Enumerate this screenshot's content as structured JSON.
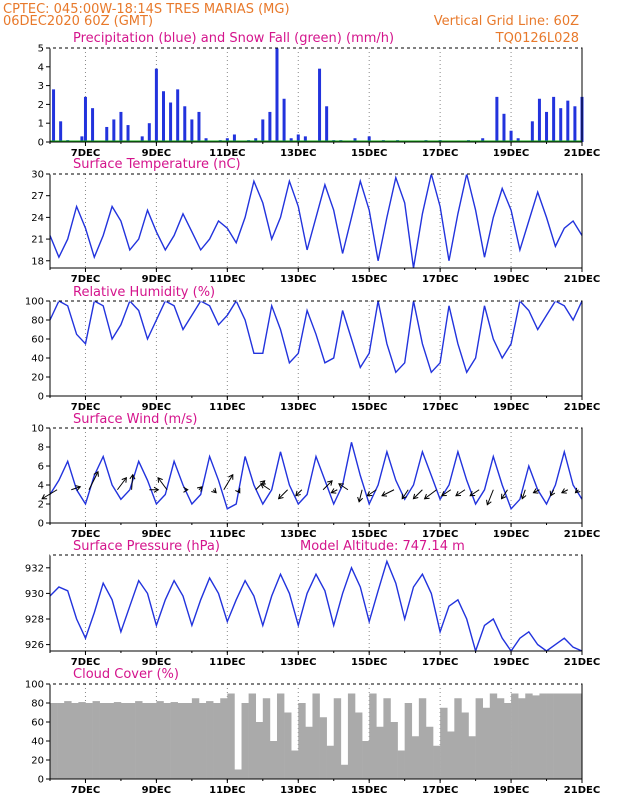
{
  "header": {
    "line1": "CPTEC:  045:00W-18:14S  TRES MARIAS (MG)",
    "line2": "06DEC2020 60Z (GMT)",
    "right1": "Vertical Grid Line: 60Z",
    "right2": "TQ0126L028"
  },
  "x_axis": {
    "start_day": 6.0,
    "end_day": 21.0,
    "labels": [
      "7DEC",
      "9DEC",
      "11DEC",
      "13DEC",
      "15DEC",
      "17DEC",
      "19DEC",
      "21DEC"
    ],
    "label_days": [
      7,
      9,
      11,
      13,
      15,
      17,
      19,
      21
    ]
  },
  "colors": {
    "line": "#2233dd",
    "precip": "#2233dd",
    "snow": "#11aa11",
    "cloud": "#aaaaaa",
    "header": "#e8792b",
    "title": "#d4148c"
  },
  "chart_data": [
    {
      "type": "bar",
      "title": "Precipitation (blue) and Snow Fall (green) (mm/h)",
      "ylim": [
        0,
        5
      ],
      "yticks": [
        0,
        1,
        2,
        3,
        4,
        5
      ],
      "series": [
        {
          "name": "Precipitation",
          "x": [
            6.1,
            6.3,
            6.5,
            6.9,
            7.0,
            7.2,
            7.6,
            7.8,
            8.0,
            8.2,
            8.6,
            8.8,
            9.0,
            9.2,
            9.4,
            9.6,
            9.8,
            10.0,
            10.2,
            10.4,
            10.8,
            11.0,
            11.2,
            11.6,
            11.8,
            12.0,
            12.2,
            12.4,
            12.6,
            12.8,
            13.0,
            13.2,
            13.6,
            13.8,
            14.0,
            14.2,
            14.6,
            15.0,
            15.4,
            15.8,
            16.2,
            16.6,
            17.0,
            17.4,
            17.8,
            18.2,
            18.6,
            18.8,
            19.0,
            19.2,
            19.6,
            19.8,
            20.0,
            20.2,
            20.4,
            20.6,
            20.8,
            21.0
          ],
          "values": [
            2.8,
            1.1,
            0.1,
            0.3,
            2.4,
            1.8,
            0.8,
            1.2,
            1.6,
            0.9,
            0.3,
            1.0,
            3.9,
            2.7,
            2.1,
            2.8,
            1.9,
            1.2,
            1.6,
            0.2,
            0.1,
            0.2,
            0.4,
            0.1,
            0.2,
            1.2,
            1.6,
            5.0,
            2.3,
            0.2,
            0.4,
            0.3,
            3.9,
            1.9,
            0.1,
            0.1,
            0.2,
            0.3,
            0.1,
            0.1,
            0.0,
            0.1,
            0.1,
            0.0,
            0.1,
            0.2,
            2.4,
            1.5,
            0.6,
            0.2,
            1.1,
            2.3,
            1.6,
            2.4,
            1.8,
            2.2,
            1.9,
            2.4
          ]
        },
        {
          "name": "Snow Fall",
          "x": [
            6.0,
            21.0
          ],
          "values": [
            0,
            0
          ]
        }
      ]
    },
    {
      "type": "line",
      "title": "Surface Temperature (nC)",
      "ylim": [
        17,
        30
      ],
      "yticks": [
        18,
        21,
        24,
        27,
        30
      ],
      "x": [
        6.0,
        6.25,
        6.5,
        6.75,
        7.0,
        7.25,
        7.5,
        7.75,
        8.0,
        8.25,
        8.5,
        8.75,
        9.0,
        9.25,
        9.5,
        9.75,
        10.0,
        10.25,
        10.5,
        10.75,
        11.0,
        11.25,
        11.5,
        11.75,
        12.0,
        12.25,
        12.5,
        12.75,
        13.0,
        13.25,
        13.5,
        13.75,
        14.0,
        14.25,
        14.5,
        14.75,
        15.0,
        15.25,
        15.5,
        15.75,
        16.0,
        16.25,
        16.5,
        16.75,
        17.0,
        17.25,
        17.5,
        17.75,
        18.0,
        18.25,
        18.5,
        18.75,
        19.0,
        19.25,
        19.5,
        19.75,
        20.0,
        20.25,
        20.5,
        20.75,
        21.0
      ],
      "values": [
        21.5,
        18.5,
        21.0,
        25.5,
        22.5,
        18.5,
        21.5,
        25.5,
        23.5,
        19.5,
        21.0,
        25.0,
        22.0,
        19.5,
        21.5,
        24.5,
        22.0,
        19.5,
        21.0,
        23.5,
        22.5,
        20.5,
        24.0,
        29.0,
        26.0,
        21.0,
        24.0,
        29.0,
        25.5,
        19.5,
        24.0,
        28.5,
        25.0,
        19.0,
        24.0,
        29.0,
        25.0,
        18.0,
        24.0,
        29.5,
        26.0,
        17.0,
        24.5,
        30.0,
        25.5,
        18.0,
        24.5,
        30.0,
        25.0,
        18.5,
        24.0,
        28.0,
        25.0,
        19.5,
        23.5,
        27.5,
        24.0,
        20.0,
        22.5,
        23.5,
        21.5
      ]
    },
    {
      "type": "line",
      "title": "Relative Humidity (%)",
      "ylim": [
        0,
        100
      ],
      "yticks": [
        0,
        20,
        40,
        60,
        80,
        100
      ],
      "x": [
        6.0,
        6.25,
        6.5,
        6.75,
        7.0,
        7.25,
        7.5,
        7.75,
        8.0,
        8.25,
        8.5,
        8.75,
        9.0,
        9.25,
        9.5,
        9.75,
        10.0,
        10.25,
        10.5,
        10.75,
        11.0,
        11.25,
        11.5,
        11.75,
        12.0,
        12.25,
        12.5,
        12.75,
        13.0,
        13.25,
        13.5,
        13.75,
        14.0,
        14.25,
        14.5,
        14.75,
        15.0,
        15.25,
        15.5,
        15.75,
        16.0,
        16.25,
        16.5,
        16.75,
        17.0,
        17.25,
        17.5,
        17.75,
        18.0,
        18.25,
        18.5,
        18.75,
        19.0,
        19.25,
        19.5,
        19.75,
        20.0,
        20.25,
        20.5,
        20.75,
        21.0
      ],
      "values": [
        80,
        100,
        95,
        65,
        55,
        100,
        95,
        60,
        75,
        100,
        90,
        60,
        80,
        100,
        95,
        70,
        85,
        100,
        95,
        75,
        85,
        100,
        80,
        45,
        45,
        95,
        70,
        35,
        45,
        90,
        65,
        35,
        40,
        90,
        60,
        30,
        45,
        100,
        55,
        25,
        35,
        100,
        55,
        25,
        35,
        95,
        55,
        25,
        40,
        95,
        60,
        40,
        55,
        100,
        90,
        70,
        85,
        100,
        95,
        80,
        100
      ]
    },
    {
      "type": "line",
      "title": "Surface Wind (m/s)",
      "ylim": [
        0,
        10
      ],
      "yticks": [
        0,
        2,
        4,
        6,
        8,
        10
      ],
      "x": [
        6.0,
        6.25,
        6.5,
        6.75,
        7.0,
        7.25,
        7.5,
        7.75,
        8.0,
        8.25,
        8.5,
        8.75,
        9.0,
        9.25,
        9.5,
        9.75,
        10.0,
        10.25,
        10.5,
        10.75,
        11.0,
        11.25,
        11.5,
        11.75,
        12.0,
        12.25,
        12.5,
        12.75,
        13.0,
        13.25,
        13.5,
        13.75,
        14.0,
        14.25,
        14.5,
        14.75,
        15.0,
        15.25,
        15.5,
        15.75,
        16.0,
        16.25,
        16.5,
        16.75,
        17.0,
        17.25,
        17.5,
        17.75,
        18.0,
        18.25,
        18.5,
        18.75,
        19.0,
        19.25,
        19.5,
        19.75,
        20.0,
        20.25,
        20.5,
        20.75,
        21.0
      ],
      "values": [
        3.0,
        4.5,
        6.5,
        3.5,
        2.0,
        5.0,
        7.0,
        4.0,
        2.5,
        3.5,
        6.5,
        4.5,
        2.0,
        3.0,
        6.5,
        4.0,
        2.0,
        3.0,
        7.0,
        4.5,
        1.5,
        2.0,
        7.0,
        4.0,
        2.0,
        3.5,
        7.5,
        4.0,
        2.0,
        3.0,
        7.0,
        4.5,
        2.0,
        4.0,
        8.5,
        5.0,
        2.0,
        4.0,
        7.5,
        4.5,
        2.5,
        4.0,
        7.5,
        5.0,
        2.5,
        4.0,
        7.5,
        4.5,
        2.0,
        3.5,
        7.0,
        4.0,
        1.5,
        2.5,
        6.0,
        3.5,
        2.0,
        4.0,
        7.5,
        4.0,
        2.5
      ],
      "arrows": {
        "x": [
          6.2,
          6.6,
          7.1,
          7.9,
          8.3,
          8.8,
          9.3,
          9.8,
          10.2,
          10.6,
          10.9,
          11.3,
          11.8,
          12.2,
          12.7,
          13.1,
          13.7,
          14.1,
          14.4,
          14.8,
          15.2,
          15.7,
          16.1,
          16.5,
          16.9,
          17.3,
          17.7,
          18.1,
          18.5,
          18.9,
          19.4,
          19.8,
          20.2,
          20.6,
          20.9
        ],
        "u": [
          -2.5,
          1.5,
          1.5,
          1.5,
          0.2,
          1.5,
          -1.5,
          0.5,
          0.5,
          0.5,
          1.5,
          0.3,
          1.5,
          -1.5,
          -1.5,
          -1.0,
          1.5,
          -1.0,
          -1.5,
          -0.5,
          -1.5,
          -2.0,
          -1.0,
          -1.5,
          -2.0,
          -1.5,
          -1.5,
          -1.5,
          -1.0,
          -1.0,
          -0.5,
          -1.0,
          -0.5,
          -1.0,
          -0.5
        ],
        "v": [
          -1.5,
          0.5,
          3.0,
          2.0,
          2.5,
          0.0,
          2.0,
          0.0,
          0.5,
          -0.5,
          2.5,
          -0.5,
          1.5,
          1.0,
          -1.5,
          -1.0,
          1.5,
          -0.5,
          1.0,
          -2.0,
          -1.0,
          -1.0,
          -1.5,
          -1.5,
          -1.5,
          -1.0,
          -1.0,
          -1.0,
          -2.5,
          -1.5,
          -1.5,
          -0.5,
          -1.0,
          -0.5,
          -0.5
        ]
      }
    },
    {
      "type": "line",
      "title": "Surface Pressure (hPa)",
      "annotation": "Model Altitude: 747.14  m",
      "ylim": [
        925.5,
        933.0
      ],
      "yticks": [
        926,
        928,
        930,
        932
      ],
      "x": [
        6.0,
        6.25,
        6.5,
        6.75,
        7.0,
        7.25,
        7.5,
        7.75,
        8.0,
        8.25,
        8.5,
        8.75,
        9.0,
        9.25,
        9.5,
        9.75,
        10.0,
        10.25,
        10.5,
        10.75,
        11.0,
        11.25,
        11.5,
        11.75,
        12.0,
        12.25,
        12.5,
        12.75,
        13.0,
        13.25,
        13.5,
        13.75,
        14.0,
        14.25,
        14.5,
        14.75,
        15.0,
        15.25,
        15.5,
        15.75,
        16.0,
        16.25,
        16.5,
        16.75,
        17.0,
        17.25,
        17.5,
        17.75,
        18.0,
        18.25,
        18.5,
        18.75,
        19.0,
        19.25,
        19.5,
        19.75,
        20.0,
        20.25,
        20.5,
        20.75,
        21.0
      ],
      "values": [
        929.8,
        930.5,
        930.2,
        928.0,
        926.5,
        928.5,
        930.8,
        929.5,
        927.0,
        929.0,
        931.0,
        930.0,
        927.5,
        929.5,
        931.0,
        929.8,
        927.5,
        929.5,
        931.2,
        930.0,
        927.8,
        929.5,
        931.0,
        929.8,
        927.5,
        929.8,
        931.5,
        930.0,
        927.5,
        930.0,
        931.5,
        930.2,
        927.5,
        930.0,
        932.0,
        930.5,
        927.8,
        930.2,
        932.5,
        930.8,
        928.0,
        930.5,
        931.5,
        930.0,
        927.0,
        929.0,
        929.5,
        928.0,
        925.5,
        927.5,
        928.0,
        926.5,
        925.5,
        926.5,
        927.0,
        926.0,
        925.5,
        926.0,
        926.5,
        925.8,
        925.5
      ]
    },
    {
      "type": "bar",
      "title": "Cloud Cover (%)",
      "ylim": [
        0,
        100
      ],
      "yticks": [
        0,
        20,
        40,
        60,
        80,
        100
      ],
      "x": [
        6.0,
        6.2,
        6.4,
        6.6,
        6.8,
        7.0,
        7.2,
        7.4,
        7.6,
        7.8,
        8.0,
        8.2,
        8.4,
        8.6,
        8.8,
        9.0,
        9.2,
        9.4,
        9.6,
        9.8,
        10.0,
        10.2,
        10.4,
        10.6,
        10.8,
        11.0,
        11.2,
        11.4,
        11.6,
        11.8,
        12.0,
        12.2,
        12.4,
        12.6,
        12.8,
        13.0,
        13.2,
        13.4,
        13.6,
        13.8,
        14.0,
        14.2,
        14.4,
        14.6,
        14.8,
        15.0,
        15.2,
        15.4,
        15.6,
        15.8,
        16.0,
        16.2,
        16.4,
        16.6,
        16.8,
        17.0,
        17.2,
        17.4,
        17.6,
        17.8,
        18.0,
        18.2,
        18.4,
        18.6,
        18.8,
        19.0,
        19.2,
        19.4,
        19.6,
        19.8,
        20.0,
        20.2,
        20.4,
        20.6,
        20.8
      ],
      "values": [
        80,
        80,
        82,
        80,
        81,
        80,
        82,
        80,
        80,
        81,
        80,
        80,
        82,
        80,
        80,
        82,
        80,
        81,
        80,
        80,
        85,
        80,
        82,
        80,
        85,
        90,
        10,
        80,
        90,
        60,
        85,
        40,
        90,
        70,
        30,
        80,
        55,
        90,
        65,
        35,
        85,
        15,
        90,
        70,
        40,
        90,
        55,
        85,
        60,
        30,
        80,
        45,
        85,
        55,
        35,
        75,
        50,
        85,
        70,
        45,
        85,
        75,
        90,
        85,
        80,
        90,
        85,
        90,
        88,
        90,
        90,
        90,
        90,
        90,
        90
      ]
    }
  ]
}
